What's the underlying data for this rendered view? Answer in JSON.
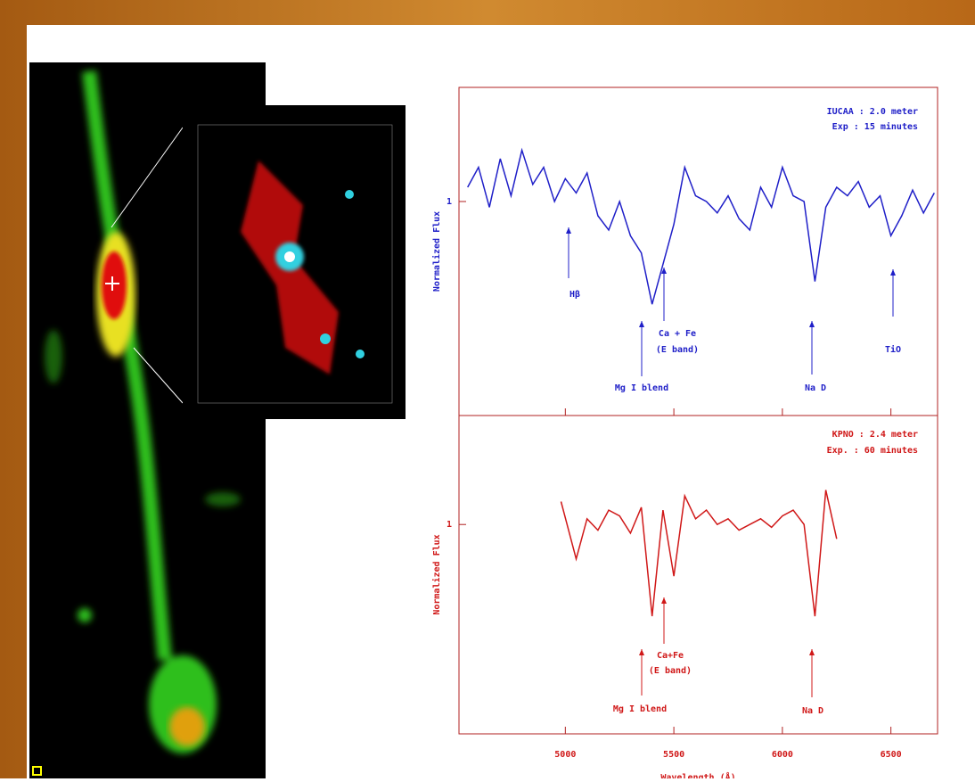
{
  "chart_data": [
    {
      "type": "line",
      "xlim": [
        4510,
        6715
      ],
      "ylim": [
        0.25,
        1.4
      ],
      "yticks": [
        1
      ],
      "ylabel": "Normalized Flux",
      "annotations": [
        "IUCAA : 2.0 meter",
        "Exp : 15 minutes",
        "Hβ",
        "Mg I blend",
        "Ca + Fe",
        "(E band)",
        "Na D",
        "TiO"
      ],
      "series": [
        {
          "color": "#1f1fc8",
          "x": [
            4550,
            4600,
            4650,
            4700,
            4750,
            4800,
            4850,
            4900,
            4950,
            5000,
            5050,
            5100,
            5150,
            5200,
            5250,
            5300,
            5350,
            5400,
            5450,
            5500,
            5550,
            5600,
            5650,
            5700,
            5750,
            5800,
            5850,
            5900,
            5950,
            6000,
            6050,
            6100,
            6150,
            6200,
            6250,
            6300,
            6350,
            6400,
            6450,
            6500,
            6550,
            6600,
            6650,
            6700
          ],
          "values": [
            1.05,
            1.12,
            0.98,
            1.15,
            1.02,
            1.18,
            1.06,
            1.12,
            1.0,
            1.08,
            1.03,
            1.1,
            0.95,
            0.9,
            1.0,
            0.88,
            0.82,
            0.64,
            0.78,
            0.92,
            1.12,
            1.02,
            1.0,
            0.96,
            1.02,
            0.94,
            0.9,
            1.05,
            0.98,
            1.12,
            1.02,
            1.0,
            0.72,
            0.98,
            1.05,
            1.02,
            1.07,
            0.98,
            1.02,
            0.88,
            0.95,
            1.04,
            0.96,
            1.03
          ]
        }
      ]
    },
    {
      "type": "line",
      "xlim": [
        4510,
        6715
      ],
      "ylim": [
        0.27,
        1.38
      ],
      "yticks": [
        1
      ],
      "xticks": [
        5000,
        5500,
        6000,
        6500
      ],
      "xlabel": "Wavelength (Å)",
      "ylabel": "Normalized Flux",
      "annotations": [
        "KPNO : 2.4 meter",
        "Exp. : 60 minutes",
        "Mg I blend",
        "Ca+Fe",
        "(E band)",
        "Na D"
      ],
      "series": [
        {
          "color": "#d01818",
          "x": [
            4980,
            5050,
            5100,
            5150,
            5200,
            5250,
            5300,
            5350,
            5400,
            5450,
            5500,
            5550,
            5600,
            5650,
            5700,
            5750,
            5800,
            5850,
            5900,
            5950,
            6000,
            6050,
            6100,
            6150,
            6200,
            6250
          ],
          "values": [
            1.08,
            0.88,
            1.02,
            0.98,
            1.05,
            1.03,
            0.97,
            1.06,
            0.68,
            1.05,
            0.82,
            1.1,
            1.02,
            1.05,
            1.0,
            1.02,
            0.98,
            1.0,
            1.02,
            0.99,
            1.03,
            1.05,
            1.0,
            0.68,
            1.12,
            0.95
          ]
        }
      ]
    }
  ]
}
